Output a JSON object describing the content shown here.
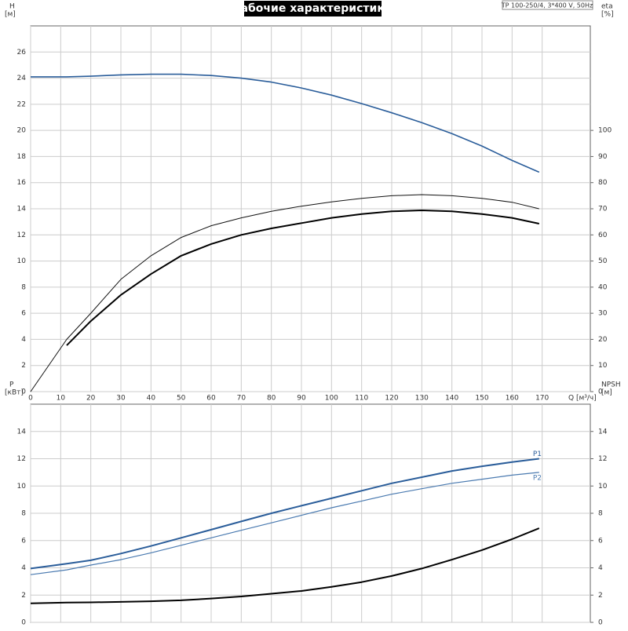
{
  "chart_data": [
    {
      "type": "line",
      "title": "Рабочие характеристики",
      "subtitle": "TP 100-250/4, 3*400 V, 50Hz",
      "y_label": "H",
      "y_unit": "[м]",
      "y2_label": "eta",
      "y2_unit": "[%]",
      "x_label": "Q [м³/ч]",
      "xlim": [
        0,
        186
      ],
      "xticks": [
        0,
        10,
        20,
        30,
        40,
        50,
        60,
        70,
        80,
        90,
        100,
        110,
        120,
        130,
        140,
        150,
        160,
        170
      ],
      "xtick_labels": true,
      "ylim": [
        0,
        28
      ],
      "yticks": [
        0,
        2,
        4,
        6,
        8,
        10,
        12,
        14,
        16,
        18,
        20,
        22,
        24,
        26
      ],
      "y2lim": [
        0,
        140
      ],
      "y2ticks": [
        0,
        10,
        20,
        30,
        40,
        50,
        60,
        70,
        80,
        90,
        100
      ],
      "grid": true,
      "x": [
        0,
        12,
        20,
        30,
        40,
        50,
        60,
        70,
        80,
        90,
        100,
        110,
        120,
        130,
        140,
        150,
        160,
        169
      ],
      "series": [
        {
          "color": "#2a5d9a",
          "values": [
            24.1,
            24.1,
            24.15,
            24.25,
            24.3,
            24.3,
            24.2,
            24.0,
            23.7,
            23.25,
            22.7,
            22.05,
            21.35,
            20.6,
            19.75,
            18.8,
            17.7,
            16.8
          ]
        },
        {
          "color": "#111111",
          "axis": "y2",
          "values": [
            0,
            20,
            30,
            43,
            52,
            59,
            63.5,
            66.5,
            69,
            71,
            72.6,
            74,
            75,
            75.4,
            75,
            74,
            72.5,
            70
          ]
        },
        {
          "color": "#000000",
          "axis": "y2",
          "values": [
            null,
            17.7,
            27,
            37,
            45,
            52,
            56.5,
            60,
            62.5,
            64.5,
            66.5,
            68,
            69,
            69.4,
            69,
            68,
            66.5,
            64.3
          ]
        }
      ]
    },
    {
      "type": "line",
      "y_label": "P",
      "y_unit": "[кВт]",
      "y2_label": "NPSH",
      "y2_unit": "[м]",
      "xlim": [
        0,
        186
      ],
      "xticks": [
        0,
        10,
        20,
        30,
        40,
        50,
        60,
        70,
        80,
        90,
        100,
        110,
        120,
        130,
        140,
        150,
        160,
        170
      ],
      "xtick_labels": false,
      "ylim": [
        0,
        16
      ],
      "yticks": [
        0,
        2,
        4,
        6,
        8,
        10,
        12,
        14
      ],
      "y2lim": [
        0,
        16
      ],
      "y2ticks": [
        0,
        2,
        4,
        6,
        8,
        10,
        12,
        14
      ],
      "grid": true,
      "x": [
        0,
        12,
        20,
        30,
        40,
        50,
        60,
        70,
        80,
        90,
        100,
        110,
        120,
        130,
        140,
        150,
        160,
        169
      ],
      "series": [
        {
          "name": "P1",
          "color": "#2a5d9a",
          "values": [
            3.95,
            4.3,
            4.55,
            5.05,
            5.6,
            6.2,
            6.8,
            7.4,
            8.0,
            8.55,
            9.1,
            9.65,
            10.2,
            10.65,
            11.1,
            11.45,
            11.75,
            12.0
          ]
        },
        {
          "name": "P2",
          "color": "#4a7ab0",
          "values": [
            3.5,
            3.85,
            4.2,
            4.6,
            5.1,
            5.65,
            6.2,
            6.75,
            7.3,
            7.85,
            8.4,
            8.9,
            9.4,
            9.8,
            10.2,
            10.5,
            10.8,
            11.0
          ]
        },
        {
          "color": "#000000",
          "axis": "y2",
          "values": [
            1.4,
            1.45,
            1.47,
            1.5,
            1.55,
            1.62,
            1.75,
            1.9,
            2.1,
            2.3,
            2.6,
            2.95,
            3.4,
            3.95,
            4.6,
            5.3,
            6.1,
            6.9
          ]
        }
      ]
    }
  ]
}
